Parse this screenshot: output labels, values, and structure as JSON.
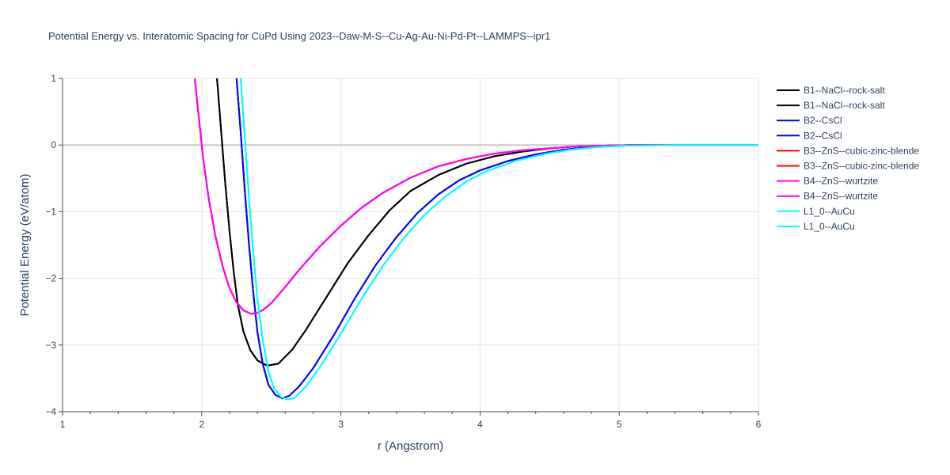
{
  "chart_data": {
    "type": "line",
    "title": "Potential Energy vs. Interatomic Spacing for CuPd Using 2023--Daw-M-S--Cu-Ag-Au-Ni-Pd-Pt--LAMMPS--ipr1",
    "xlabel": "r (Angstrom)",
    "ylabel": "Potential Energy (eV/atom)",
    "xlim": [
      1,
      6
    ],
    "ylim": [
      -4,
      1
    ],
    "x_ticks": [
      1,
      2,
      3,
      4,
      5,
      6
    ],
    "y_ticks": [
      1,
      0,
      -1,
      -2,
      -3,
      -4
    ],
    "x_tick_labels": [
      "1",
      "2",
      "3",
      "4",
      "5",
      "6"
    ],
    "y_tick_labels": [
      "1",
      "0",
      "−1",
      "−2",
      "−3",
      "−4"
    ],
    "grid": true,
    "legend_position": "right",
    "series": [
      {
        "name": "B1--NaCl--rock-salt",
        "color": "#000000",
        "x": [
          2.11,
          2.14,
          2.17,
          2.2,
          2.23,
          2.26,
          2.3,
          2.35,
          2.4,
          2.47,
          2.55,
          2.65,
          2.75,
          2.9,
          3.05,
          3.2,
          3.35,
          3.5,
          3.7,
          3.9,
          4.1,
          4.3,
          4.5,
          4.7,
          4.9,
          5.1,
          5.4,
          6.0
        ],
        "y": [
          1.0,
          0.2,
          -0.6,
          -1.3,
          -1.9,
          -2.4,
          -2.8,
          -3.08,
          -3.23,
          -3.31,
          -3.28,
          -3.07,
          -2.77,
          -2.27,
          -1.77,
          -1.35,
          -0.98,
          -0.69,
          -0.45,
          -0.28,
          -0.17,
          -0.1,
          -0.05,
          -0.02,
          -0.01,
          0.0,
          0.0,
          0.0
        ]
      },
      {
        "name": "B1--NaCl--rock-salt",
        "color": "#000000",
        "x": [
          2.11,
          2.14,
          2.17,
          2.2,
          2.23,
          2.26,
          2.3,
          2.35,
          2.4,
          2.47,
          2.55,
          2.65,
          2.75,
          2.9,
          3.05,
          3.2,
          3.35,
          3.5,
          3.7,
          3.9,
          4.1,
          4.3,
          4.5,
          4.7,
          4.9,
          5.1,
          5.4,
          6.0
        ],
        "y": [
          1.0,
          0.2,
          -0.6,
          -1.3,
          -1.9,
          -2.4,
          -2.8,
          -3.08,
          -3.23,
          -3.31,
          -3.28,
          -3.07,
          -2.77,
          -2.27,
          -1.77,
          -1.35,
          -0.98,
          -0.69,
          -0.45,
          -0.28,
          -0.17,
          -0.1,
          -0.05,
          -0.02,
          -0.01,
          0.0,
          0.0,
          0.0
        ]
      },
      {
        "name": "B2--CsCl",
        "color": "#0000ff",
        "x": [
          2.25,
          2.28,
          2.31,
          2.34,
          2.37,
          2.4,
          2.44,
          2.48,
          2.53,
          2.58,
          2.63,
          2.7,
          2.8,
          2.95,
          3.1,
          3.25,
          3.4,
          3.55,
          3.7,
          3.85,
          4.0,
          4.2,
          4.4,
          4.6,
          4.8,
          5.0,
          5.3,
          6.0
        ],
        "y": [
          1.0,
          0.2,
          -0.7,
          -1.5,
          -2.2,
          -2.8,
          -3.3,
          -3.6,
          -3.75,
          -3.8,
          -3.76,
          -3.62,
          -3.35,
          -2.85,
          -2.3,
          -1.8,
          -1.38,
          -1.02,
          -0.74,
          -0.53,
          -0.38,
          -0.24,
          -0.14,
          -0.07,
          -0.03,
          -0.01,
          0.0,
          0.0
        ]
      },
      {
        "name": "B2--CsCl",
        "color": "#0000ff",
        "x": [
          2.25,
          2.28,
          2.31,
          2.34,
          2.37,
          2.4,
          2.44,
          2.48,
          2.53,
          2.58,
          2.63,
          2.7,
          2.8,
          2.95,
          3.1,
          3.25,
          3.4,
          3.55,
          3.7,
          3.85,
          4.0,
          4.2,
          4.4,
          4.6,
          4.8,
          5.0,
          5.3,
          6.0
        ],
        "y": [
          1.0,
          0.2,
          -0.7,
          -1.5,
          -2.2,
          -2.8,
          -3.3,
          -3.6,
          -3.75,
          -3.8,
          -3.76,
          -3.62,
          -3.35,
          -2.85,
          -2.3,
          -1.8,
          -1.38,
          -1.02,
          -0.74,
          -0.53,
          -0.38,
          -0.24,
          -0.14,
          -0.07,
          -0.03,
          -0.01,
          0.0,
          0.0
        ]
      },
      {
        "name": "B3--ZnS--cubic-zinc-blende",
        "color": "#ff0000",
        "x": [
          1.95,
          1.98,
          2.01,
          2.05,
          2.1,
          2.15,
          2.2,
          2.25,
          2.3,
          2.35,
          2.4,
          2.45,
          2.5,
          2.6,
          2.7,
          2.85,
          3.0,
          3.15,
          3.3,
          3.5,
          3.7,
          3.9,
          4.1,
          4.3,
          4.5,
          4.7,
          4.9,
          5.1,
          5.4,
          6.0
        ],
        "y": [
          1.0,
          0.4,
          -0.2,
          -0.8,
          -1.38,
          -1.82,
          -2.15,
          -2.36,
          -2.48,
          -2.53,
          -2.52,
          -2.46,
          -2.37,
          -2.13,
          -1.87,
          -1.52,
          -1.21,
          -0.94,
          -0.72,
          -0.49,
          -0.32,
          -0.21,
          -0.13,
          -0.08,
          -0.05,
          -0.02,
          -0.01,
          0.0,
          0.0,
          0.0
        ]
      },
      {
        "name": "B3--ZnS--cubic-zinc-blende",
        "color": "#ff0000",
        "x": [
          1.95,
          1.98,
          2.01,
          2.05,
          2.1,
          2.15,
          2.2,
          2.25,
          2.3,
          2.35,
          2.4,
          2.45,
          2.5,
          2.6,
          2.7,
          2.85,
          3.0,
          3.15,
          3.3,
          3.5,
          3.7,
          3.9,
          4.1,
          4.3,
          4.5,
          4.7,
          4.9,
          5.1,
          5.4,
          6.0
        ],
        "y": [
          1.0,
          0.4,
          -0.2,
          -0.8,
          -1.38,
          -1.82,
          -2.15,
          -2.36,
          -2.48,
          -2.53,
          -2.52,
          -2.46,
          -2.37,
          -2.13,
          -1.87,
          -1.52,
          -1.21,
          -0.94,
          -0.72,
          -0.49,
          -0.32,
          -0.21,
          -0.13,
          -0.08,
          -0.05,
          -0.02,
          -0.01,
          0.0,
          0.0,
          0.0
        ]
      },
      {
        "name": "B4--ZnS--wurtzite",
        "color": "#ff00ff",
        "x": [
          1.95,
          1.98,
          2.01,
          2.05,
          2.1,
          2.15,
          2.2,
          2.25,
          2.3,
          2.35,
          2.4,
          2.45,
          2.5,
          2.6,
          2.7,
          2.85,
          3.0,
          3.15,
          3.3,
          3.5,
          3.7,
          3.9,
          4.1,
          4.3,
          4.5,
          4.7,
          4.9,
          5.1,
          5.4,
          6.0
        ],
        "y": [
          1.0,
          0.4,
          -0.2,
          -0.8,
          -1.38,
          -1.82,
          -2.15,
          -2.36,
          -2.48,
          -2.53,
          -2.52,
          -2.46,
          -2.37,
          -2.13,
          -1.87,
          -1.52,
          -1.21,
          -0.94,
          -0.72,
          -0.49,
          -0.32,
          -0.21,
          -0.13,
          -0.08,
          -0.05,
          -0.02,
          -0.01,
          0.0,
          0.0,
          0.0
        ]
      },
      {
        "name": "B4--ZnS--wurtzite",
        "color": "#ff00ff",
        "x": [
          1.95,
          1.98,
          2.01,
          2.05,
          2.1,
          2.15,
          2.2,
          2.25,
          2.3,
          2.35,
          2.4,
          2.45,
          2.5,
          2.6,
          2.7,
          2.85,
          3.0,
          3.15,
          3.3,
          3.5,
          3.7,
          3.9,
          4.1,
          4.3,
          4.5,
          4.7,
          4.9,
          5.1,
          5.4,
          6.0
        ],
        "y": [
          1.0,
          0.4,
          -0.2,
          -0.8,
          -1.38,
          -1.82,
          -2.15,
          -2.36,
          -2.48,
          -2.53,
          -2.52,
          -2.46,
          -2.37,
          -2.13,
          -1.87,
          -1.52,
          -1.21,
          -0.94,
          -0.72,
          -0.49,
          -0.32,
          -0.21,
          -0.13,
          -0.08,
          -0.05,
          -0.02,
          -0.01,
          0.0,
          0.0,
          0.0
        ]
      },
      {
        "name": "L1_0--AuCu",
        "color": "#00ffff",
        "x": [
          2.28,
          2.31,
          2.34,
          2.37,
          2.4,
          2.44,
          2.48,
          2.52,
          2.57,
          2.62,
          2.67,
          2.75,
          2.85,
          3.0,
          3.15,
          3.3,
          3.45,
          3.6,
          3.75,
          3.9,
          4.05,
          4.25,
          4.45,
          4.65,
          4.85,
          5.05,
          5.4,
          6.0
        ],
        "y": [
          1.0,
          0.1,
          -0.8,
          -1.6,
          -2.3,
          -2.95,
          -3.4,
          -3.65,
          -3.78,
          -3.82,
          -3.79,
          -3.62,
          -3.33,
          -2.83,
          -2.3,
          -1.82,
          -1.4,
          -1.05,
          -0.77,
          -0.55,
          -0.39,
          -0.24,
          -0.14,
          -0.07,
          -0.03,
          -0.01,
          0.0,
          0.0
        ]
      },
      {
        "name": "L1_0--AuCu",
        "color": "#00ffff",
        "x": [
          2.28,
          2.31,
          2.34,
          2.37,
          2.4,
          2.44,
          2.48,
          2.52,
          2.57,
          2.62,
          2.67,
          2.75,
          2.85,
          3.0,
          3.15,
          3.3,
          3.45,
          3.6,
          3.75,
          3.9,
          4.05,
          4.25,
          4.45,
          4.65,
          4.85,
          5.05,
          5.4,
          6.0
        ],
        "y": [
          1.0,
          0.1,
          -0.8,
          -1.6,
          -2.3,
          -2.95,
          -3.4,
          -3.65,
          -3.78,
          -3.82,
          -3.79,
          -3.62,
          -3.33,
          -2.83,
          -2.3,
          -1.82,
          -1.4,
          -1.05,
          -0.77,
          -0.55,
          -0.39,
          -0.24,
          -0.14,
          -0.07,
          -0.03,
          -0.01,
          0.0,
          0.0
        ]
      }
    ]
  }
}
